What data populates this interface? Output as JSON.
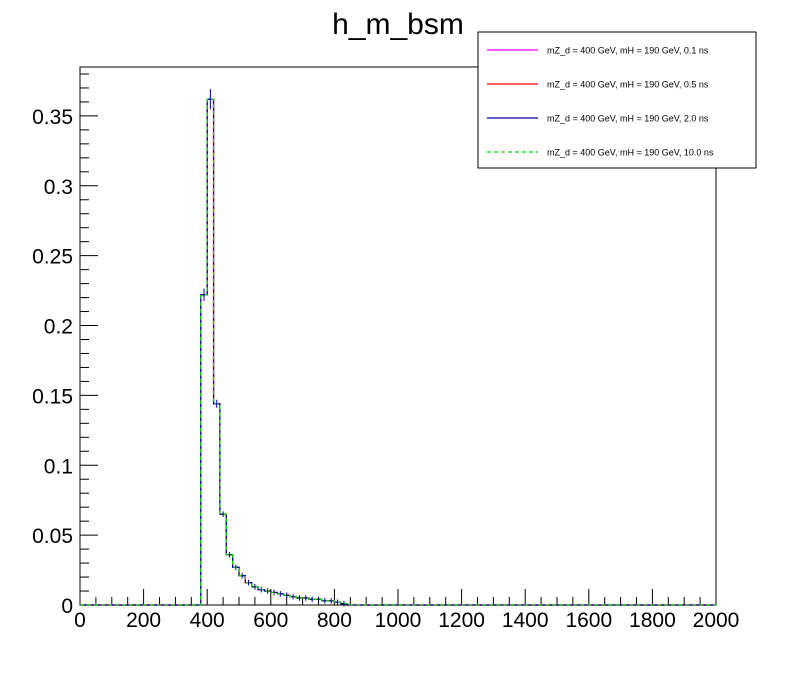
{
  "chart_data": {
    "type": "histogram",
    "title": "h_m_bsm",
    "xlabel": "",
    "ylabel": "",
    "xlim": [
      0,
      2000
    ],
    "ylim": [
      0,
      0.385
    ],
    "x_ticks": [
      0,
      200,
      400,
      600,
      800,
      1000,
      1200,
      1400,
      1600,
      1800,
      2000
    ],
    "x_tick_labels": [
      "0",
      "200",
      "400",
      "600",
      "800",
      "1000",
      "1200",
      "1400",
      "1600",
      "1800",
      "2000"
    ],
    "y_ticks": [
      0,
      0.05,
      0.1,
      0.15,
      0.2,
      0.25,
      0.3,
      0.35
    ],
    "y_tick_labels": [
      "0",
      "0.05",
      "0.1",
      "0.15",
      "0.2",
      "0.25",
      "0.3",
      "0.35"
    ],
    "grid": false,
    "legend_position": "top-right",
    "bin_edges_start": 0,
    "bin_width": 20,
    "bins": [
      [
        380,
        0.222
      ],
      [
        400,
        0.362
      ],
      [
        420,
        0.144
      ],
      [
        440,
        0.065
      ],
      [
        460,
        0.036
      ],
      [
        480,
        0.027
      ],
      [
        500,
        0.021
      ],
      [
        520,
        0.016
      ],
      [
        540,
        0.013
      ],
      [
        560,
        0.011
      ],
      [
        580,
        0.01
      ],
      [
        600,
        0.009
      ],
      [
        620,
        0.008
      ],
      [
        640,
        0.007
      ],
      [
        660,
        0.006
      ],
      [
        680,
        0.005
      ],
      [
        700,
        0.005
      ],
      [
        720,
        0.004
      ],
      [
        740,
        0.004
      ],
      [
        760,
        0.003
      ],
      [
        780,
        0.003
      ],
      [
        800,
        0.002
      ],
      [
        820,
        0.001
      ]
    ],
    "series": [
      {
        "name": "mZ_d = 400 GeV, mH = 190 GeV, 0.1 ns",
        "color": "#ff00ff",
        "dash": "solid"
      },
      {
        "name": "mZ_d = 400 GeV, mH = 190 GeV, 0.5 ns",
        "color": "#ff0000",
        "dash": "solid"
      },
      {
        "name": "mZ_d = 400 GeV, mH = 190 GeV, 2.0 ns",
        "color": "#000099",
        "dash": "solid"
      },
      {
        "name": "mZ_d = 400 GeV, mH = 190 GeV, 10.0 ns",
        "color": "#00dd00",
        "dash": "dashed"
      }
    ]
  }
}
